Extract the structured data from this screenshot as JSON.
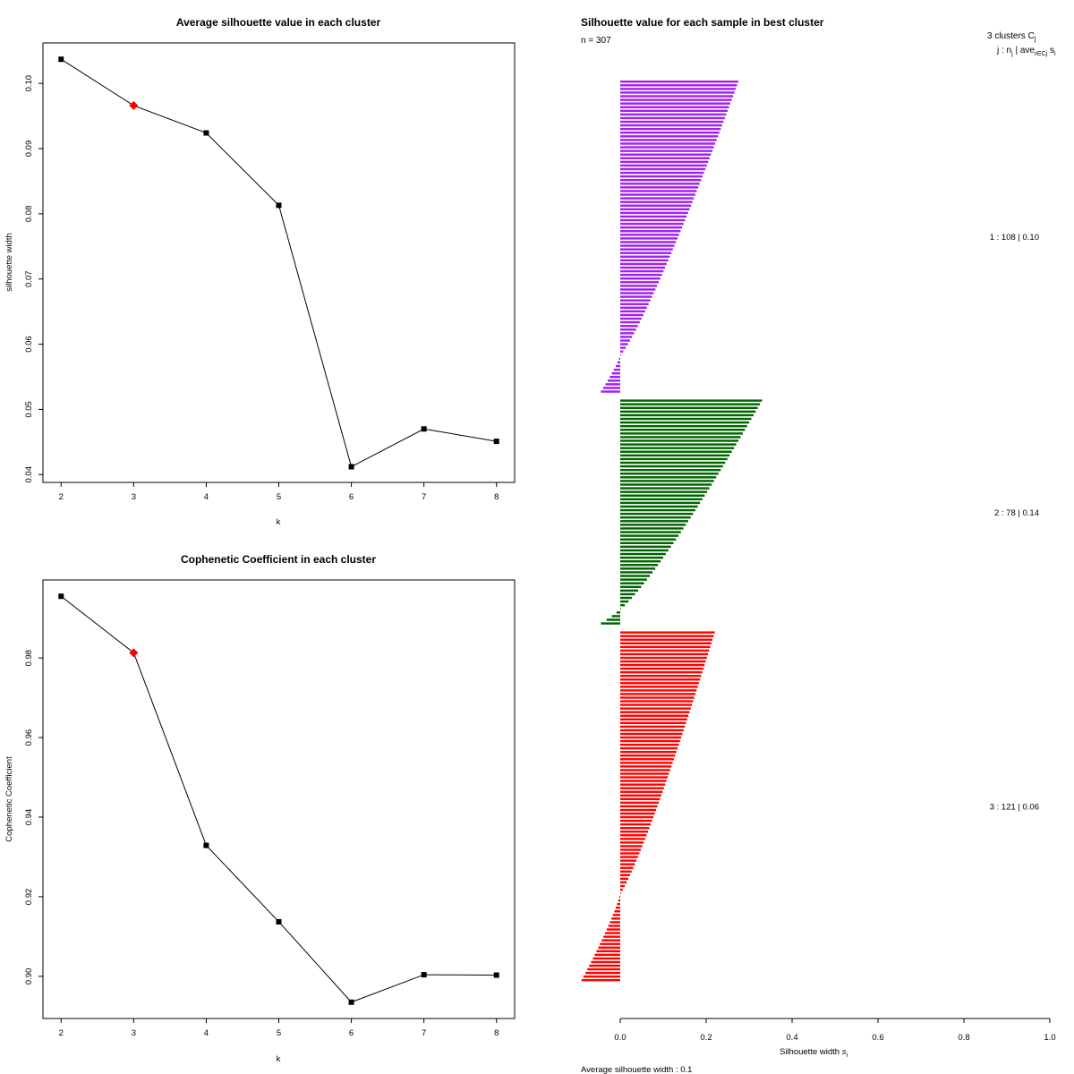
{
  "colors": {
    "cluster1": "#A020F0",
    "cluster2": "#006400",
    "cluster3": "#FF0000",
    "line": "#000000",
    "highlight": "#FF0000"
  },
  "chart_data": [
    {
      "type": "line",
      "title": "Average silhouette value in each cluster",
      "xlabel": "k",
      "ylabel": "silhouette width",
      "x": [
        2,
        3,
        4,
        5,
        6,
        7,
        8
      ],
      "values": [
        0.1037,
        0.0966,
        0.0924,
        0.0813,
        0.0412,
        0.047,
        0.0451
      ],
      "highlight_x": 3,
      "x_ticks": [
        "2",
        "3",
        "4",
        "5",
        "6",
        "7",
        "8"
      ],
      "y_ticks": [
        "0.04",
        "0.05",
        "0.06",
        "0.07",
        "0.08",
        "0.09",
        "0.10"
      ],
      "xlim": [
        1.75,
        8.25
      ],
      "ylim": [
        0.0388,
        0.1062
      ]
    },
    {
      "type": "line",
      "title": "Cophenetic Coefficient in each cluster",
      "xlabel": "k",
      "ylabel": "Cophenetic Coefficient",
      "x": [
        2,
        3,
        4,
        5,
        6,
        7,
        8
      ],
      "values": [
        0.9955,
        0.9813,
        0.9329,
        0.9137,
        0.8935,
        0.9004,
        0.9003
      ],
      "highlight_x": 3,
      "x_ticks": [
        "2",
        "3",
        "4",
        "5",
        "6",
        "7",
        "8"
      ],
      "y_ticks": [
        "0.90",
        "0.92",
        "0.94",
        "0.96",
        "0.98"
      ],
      "xlim": [
        1.75,
        8.25
      ],
      "ylim": [
        0.8894,
        0.9996
      ]
    },
    {
      "type": "bar",
      "orientation": "horizontal",
      "title": "Silhouette value for each sample in best cluster",
      "n_label": "n = 307",
      "xlabel": "Silhouette width",
      "xlabel_sub": "i",
      "footer": "Average silhouette width :  0.1",
      "x_ticks": [
        "0.0",
        "0.2",
        "0.4",
        "0.6",
        "0.8",
        "1.0"
      ],
      "xlim": [
        0.0,
        1.0
      ],
      "legend": {
        "heading": "3  clusters  C",
        "heading_sub": "j",
        "subheading_1": "j :  n",
        "subheading_sub_1": "j",
        "subheading_2": " | ave",
        "subheading_sub_2": "i∈Cj",
        "subheading_3": " s",
        "subheading_sub_3": "i"
      },
      "clusters": [
        {
          "label": "1 :   108  |  0.10",
          "n": 108,
          "avg": 0.1,
          "max": 0.275,
          "min": -0.045,
          "n_negative": 12
        },
        {
          "label": "2 :   78  |  0.14",
          "n": 78,
          "avg": 0.14,
          "max": 0.33,
          "min": -0.045,
          "n_negative": 5
        },
        {
          "label": "3 :   121  |  0.06",
          "n": 121,
          "avg": 0.06,
          "max": 0.22,
          "min": -0.09,
          "n_negative": 30
        }
      ]
    }
  ]
}
